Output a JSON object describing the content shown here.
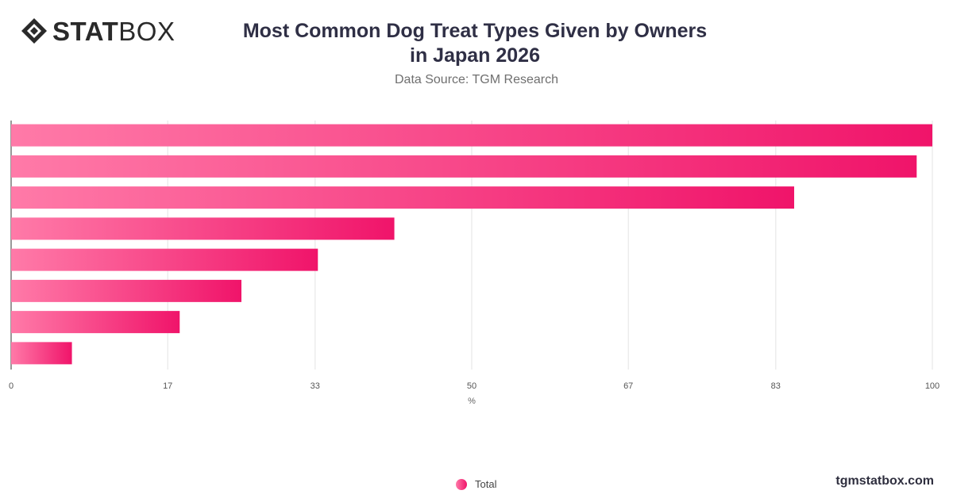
{
  "brand": {
    "logo_text_bold": "STAT",
    "logo_text_light": "BOX",
    "site": "tgmstatbox.com"
  },
  "header": {
    "title": "Most Common Dog Treat Types Given by Owners in Japan 2026",
    "subtitle": "Data Source: TGM Research"
  },
  "legend": {
    "label": "Total"
  },
  "colors": {
    "bar_start": "#ff7aa8",
    "bar_end": "#f0146a",
    "grid": "#e3e3e3",
    "axis": "#333333"
  },
  "chart_data": {
    "type": "bar",
    "orientation": "horizontal",
    "categories": [
      "",
      "",
      "",
      "",
      "",
      "",
      "",
      ""
    ],
    "series": [
      {
        "name": "Total",
        "values": [
          100,
          98.3,
          85,
          41.6,
          33.3,
          25,
          18.3,
          6.6
        ]
      }
    ],
    "xlabel": "%",
    "xlim": [
      0,
      100
    ],
    "ticks": [
      0,
      17,
      33,
      50,
      67,
      83,
      100
    ],
    "tick_labels": [
      "0",
      "17",
      "33",
      "50",
      "67",
      "83",
      "100"
    ],
    "grid": true,
    "legend_position": "bottom"
  }
}
